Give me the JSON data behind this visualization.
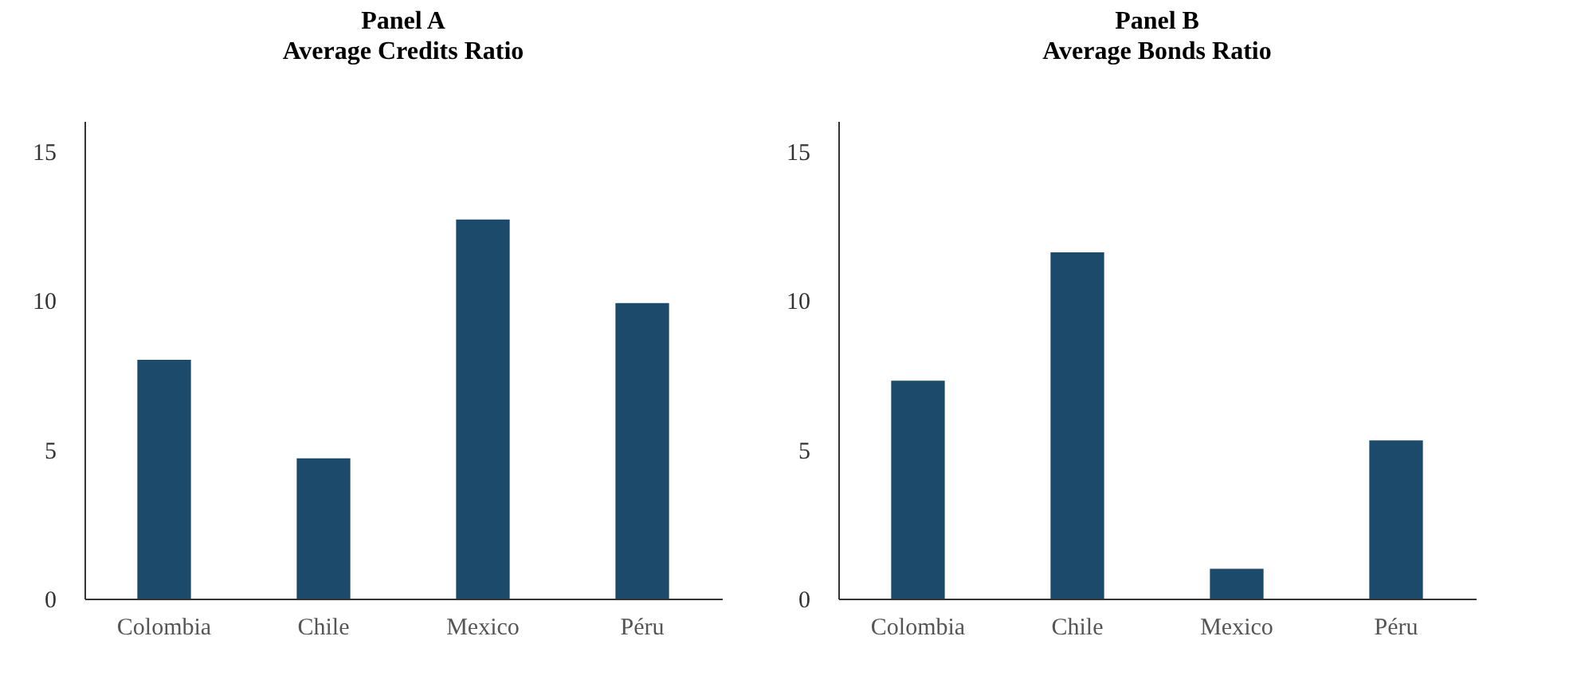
{
  "chart_data": [
    {
      "type": "bar",
      "title": "Panel A",
      "subtitle": "Average Credits Ratio",
      "categories": [
        "Colombia",
        "Chile",
        "Mexico",
        "Péru"
      ],
      "values": [
        8.0,
        4.7,
        12.7,
        9.9
      ],
      "color": "#1b4a6b",
      "ylim": [
        0,
        16
      ],
      "yticks": [
        0,
        5,
        10,
        15
      ],
      "grid": false
    },
    {
      "type": "bar",
      "title": "Panel B",
      "subtitle": "Average Bonds Ratio",
      "categories": [
        "Colombia",
        "Chile",
        "Mexico",
        "Péru"
      ],
      "values": [
        7.3,
        11.6,
        1.0,
        5.3
      ],
      "color": "#1b4a6b",
      "ylim": [
        0,
        16
      ],
      "yticks": [
        0,
        5,
        10,
        15
      ],
      "grid": false
    }
  ]
}
